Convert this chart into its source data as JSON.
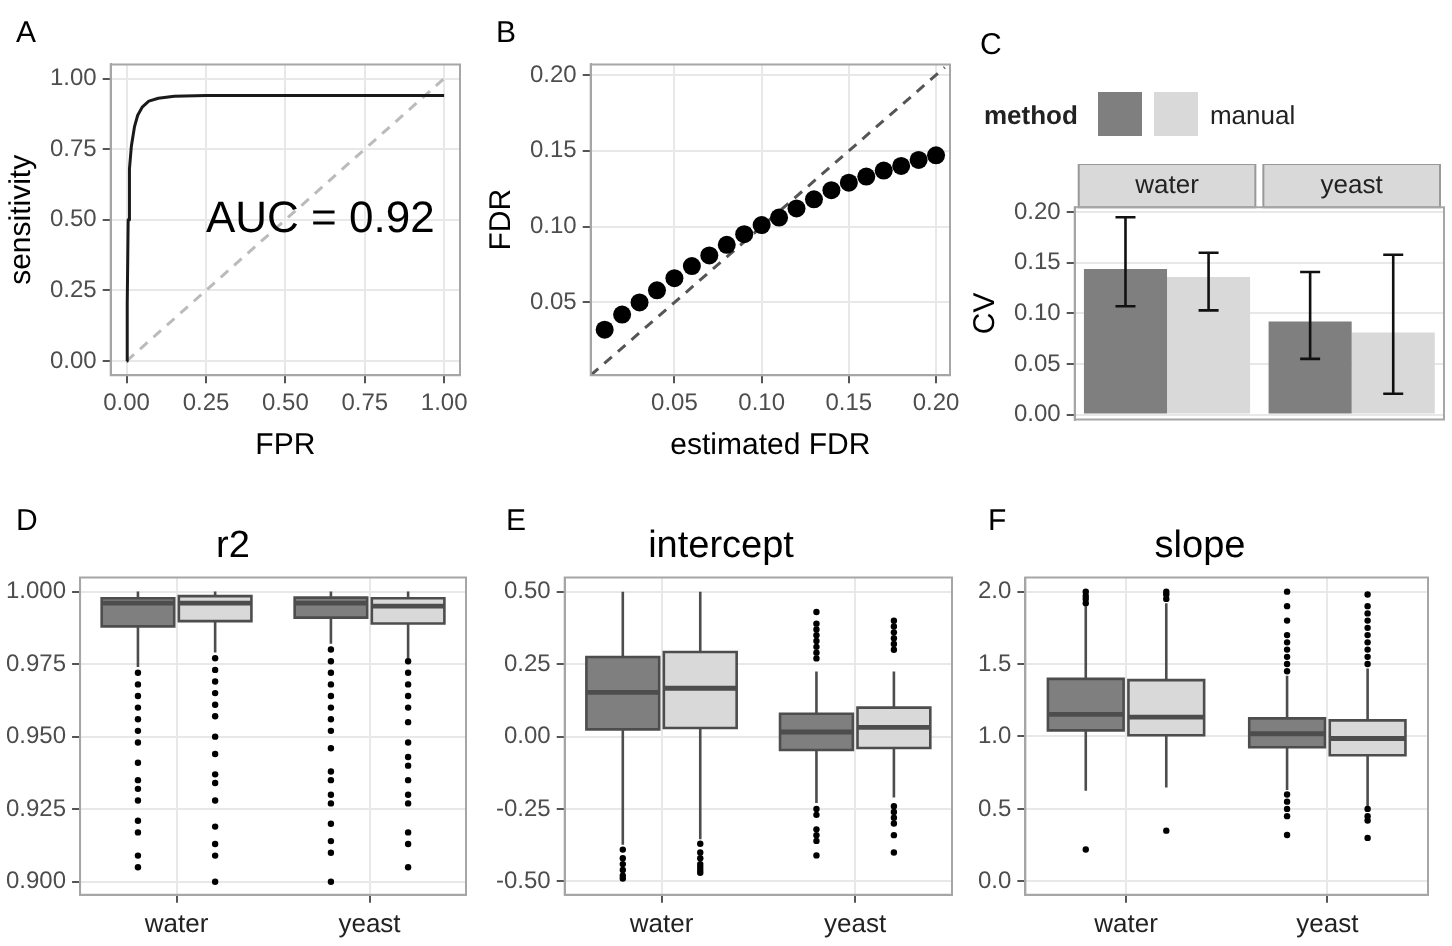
{
  "chart_data": [
    {
      "type": "line",
      "xlabel": "FPR",
      "ylabel": "sensitivity",
      "annotations": [
        "A",
        "AUC = 0.92"
      ],
      "xlim": [
        -0.05,
        1.05
      ],
      "ylim": [
        -0.05,
        1.05
      ],
      "xticks": [
        {
          "value": 0,
          "label": "0.00"
        },
        {
          "value": 0.25,
          "label": "0.25"
        },
        {
          "value": 0.5,
          "label": "0.50"
        },
        {
          "value": 0.75,
          "label": "0.75"
        },
        {
          "value": 1,
          "label": "1.00"
        }
      ],
      "yticks": [
        {
          "value": 0,
          "label": "0.00"
        },
        {
          "value": 0.25,
          "label": "0.25"
        },
        {
          "value": 0.5,
          "label": "0.50"
        },
        {
          "value": 0.75,
          "label": "0.75"
        },
        {
          "value": 1,
          "label": "1.00"
        }
      ],
      "grid": true,
      "marker": "none",
      "series": [
        {
          "color": "#bbbbbb",
          "line_style": "dashed",
          "x": [
            0,
            1
          ],
          "values": [
            0,
            1
          ]
        },
        {
          "color": "#1a1a1a",
          "line_style": "solid",
          "x": [
            0,
            0.002,
            0.005,
            0.009,
            0.015,
            0.025,
            0.035,
            0.05,
            0.07,
            0.1,
            0.15,
            0.25,
            0.5,
            1
          ],
          "values": [
            0,
            0.2,
            0.5,
            0.68,
            0.76,
            0.83,
            0.87,
            0.9,
            0.92,
            0.93,
            0.937,
            0.94,
            0.94,
            0.94
          ]
        }
      ]
    },
    {
      "type": "scatter",
      "xlabel": "estimated FDR",
      "ylabel": "FDR",
      "annotations": [
        "B"
      ],
      "xlim": [
        0.002,
        0.208
      ],
      "ylim": [
        0.002,
        0.207
      ],
      "xticks": [
        {
          "value": 0.05,
          "label": "0.05"
        },
        {
          "value": 0.1,
          "label": "0.10"
        },
        {
          "value": 0.15,
          "label": "0.15"
        },
        {
          "value": 0.2,
          "label": "0.20"
        }
      ],
      "yticks": [
        {
          "value": 0.05,
          "label": "0.05"
        },
        {
          "value": 0.1,
          "label": "0.10"
        },
        {
          "value": 0.15,
          "label": "0.15"
        },
        {
          "value": 0.2,
          "label": "0.20"
        }
      ],
      "grid": true,
      "series": [
        {
          "type": "line",
          "color": "#555555",
          "line_style": "dashed",
          "marker": "none",
          "x": [
            0.002,
            0.205
          ],
          "values": [
            0.002,
            0.205
          ]
        },
        {
          "color": "#000000",
          "marker": "circle",
          "x": [
            0.01,
            0.02,
            0.03,
            0.04,
            0.05,
            0.06,
            0.07,
            0.08,
            0.09,
            0.1,
            0.11,
            0.12,
            0.13,
            0.14,
            0.15,
            0.16,
            0.17,
            0.18,
            0.19,
            0.2
          ],
          "values": [
            0.032,
            0.042,
            0.05,
            0.058,
            0.066,
            0.074,
            0.081,
            0.088,
            0.095,
            0.101,
            0.106,
            0.112,
            0.118,
            0.124,
            0.129,
            0.133,
            0.137,
            0.14,
            0.144,
            0.147
          ]
        }
      ]
    },
    {
      "type": "bar",
      "ylabel": "CV",
      "annotations": [
        "C"
      ],
      "legend_title": "method",
      "legend": "top",
      "categories": [
        "water",
        "yeast"
      ],
      "ylim": [
        -0.005,
        0.205
      ],
      "yticks": [
        {
          "value": 0,
          "label": "0.00"
        },
        {
          "value": 0.05,
          "label": "0.05"
        },
        {
          "value": 0.1,
          "label": "0.10"
        },
        {
          "value": 0.15,
          "label": "0.15"
        },
        {
          "value": 0.2,
          "label": "0.20"
        }
      ],
      "grid": true,
      "series": [
        {
          "color": "#7f7f7f",
          "values": [
            0.144,
            0.092
          ],
          "errors": [
            [
              0.107,
              0.195
            ],
            [
              0.055,
              0.141
            ]
          ]
        },
        {
          "name": "manual",
          "color": "#d9d9d9",
          "values": [
            0.136,
            0.081
          ],
          "errors": [
            [
              0.103,
              0.16
            ],
            [
              0.0205,
              0.158
            ]
          ]
        }
      ]
    },
    {
      "type": "box",
      "title": "r2",
      "annotations": [
        "D"
      ],
      "categories": [
        "water",
        "yeast"
      ],
      "ylim": [
        0.8955,
        1.0048
      ],
      "yticks": [
        {
          "value": 0.9,
          "label": "0.900"
        },
        {
          "value": 0.925,
          "label": "0.925"
        },
        {
          "value": 0.95,
          "label": "0.950"
        },
        {
          "value": 0.975,
          "label": "0.975"
        },
        {
          "value": 1,
          "label": "1.000"
        }
      ],
      "grid": true,
      "series": [
        {
          "color": "#7f7f7f",
          "boxes": [
            {
              "low": 0.974,
              "q1": 0.988,
              "median": 0.996,
              "q3": 0.9977,
              "high": 1.0,
              "outliers": [
                0.972,
                0.968,
                0.964,
                0.96,
                0.956,
                0.952,
                0.948,
                0.941,
                0.935,
                0.932,
                0.928,
                0.921,
                0.917,
                0.909,
                0.905
              ]
            },
            {
              "low": 0.982,
              "q1": 0.991,
              "median": 0.996,
              "q3": 0.9979,
              "high": 1.0,
              "outliers": [
                0.98,
                0.976,
                0.972,
                0.968,
                0.964,
                0.96,
                0.956,
                0.952,
                0.946,
                0.938,
                0.935,
                0.93,
                0.927,
                0.92,
                0.914,
                0.91,
                0.9
              ]
            }
          ]
        },
        {
          "color": "#d9d9d9",
          "boxes": [
            {
              "low": 0.979,
              "q1": 0.9898,
              "median": 0.996,
              "q3": 0.9984,
              "high": 1.0,
              "outliers": [
                0.977,
                0.973,
                0.969,
                0.965,
                0.961,
                0.957,
                0.95,
                0.944,
                0.937,
                0.934,
                0.928,
                0.919,
                0.913,
                0.909,
                0.9
              ]
            },
            {
              "low": 0.977,
              "q1": 0.989,
              "median": 0.995,
              "q3": 0.9977,
              "high": 1.0,
              "outliers": [
                0.976,
                0.972,
                0.968,
                0.964,
                0.96,
                0.955,
                0.948,
                0.943,
                0.94,
                0.935,
                0.93,
                0.927,
                0.917,
                0.913,
                0.905
              ]
            }
          ]
        }
      ]
    },
    {
      "type": "box",
      "title": "intercept",
      "annotations": [
        "E"
      ],
      "categories": [
        "water",
        "yeast"
      ],
      "ylim": [
        -0.546,
        0.549
      ],
      "yticks": [
        {
          "value": -0.5,
          "label": "-0.50"
        },
        {
          "value": -0.25,
          "label": "-0.25"
        },
        {
          "value": 0,
          "label": "0.00"
        },
        {
          "value": 0.25,
          "label": "0.25"
        },
        {
          "value": 0.5,
          "label": "0.50"
        }
      ],
      "grid": true,
      "series": [
        {
          "color": "#7f7f7f",
          "boxes": [
            {
              "low": -0.373,
              "q1": 0.025,
              "median": 0.153,
              "q3": 0.275,
              "high": 0.5,
              "outliers": [
                -0.39,
                -0.42,
                -0.44,
                -0.46,
                -0.48,
                -0.49
              ]
            },
            {
              "low": -0.229,
              "q1": -0.046,
              "median": 0.016,
              "q3": 0.079,
              "high": 0.225,
              "outliers": [
                -0.25,
                -0.27,
                -0.32,
                -0.34,
                -0.36,
                -0.41,
                0.27,
                0.29,
                0.31,
                0.33,
                0.35,
                0.37,
                0.39,
                0.43
              ]
            }
          ]
        },
        {
          "color": "#d9d9d9",
          "boxes": [
            {
              "low": -0.354,
              "q1": 0.03,
              "median": 0.167,
              "q3": 0.292,
              "high": 0.5,
              "outliers": [
                -0.37,
                -0.4,
                -0.42,
                -0.44,
                -0.45,
                -0.46,
                -0.47
              ]
            },
            {
              "low": -0.21,
              "q1": -0.039,
              "median": 0.032,
              "q3": 0.1,
              "high": 0.225,
              "outliers": [
                -0.24,
                -0.26,
                -0.28,
                -0.3,
                -0.34,
                -0.4,
                0.3,
                0.32,
                0.34,
                0.36,
                0.38,
                0.4
              ]
            }
          ]
        }
      ]
    },
    {
      "type": "box",
      "title": "slope",
      "annotations": [
        "F"
      ],
      "categories": [
        "water",
        "yeast"
      ],
      "ylim": [
        -0.093,
        2.097
      ],
      "yticks": [
        {
          "value": 0,
          "label": "0.0"
        },
        {
          "value": 0.5,
          "label": "0.5"
        },
        {
          "value": 1,
          "label": "1.0"
        },
        {
          "value": 1.5,
          "label": "1.5"
        },
        {
          "value": 2,
          "label": "2.0"
        }
      ],
      "grid": true,
      "series": [
        {
          "color": "#7f7f7f",
          "boxes": [
            {
              "low": 0.625,
              "q1": 1.042,
              "median": 1.153,
              "q3": 1.398,
              "high": 1.9,
              "outliers": [
                0.22,
                1.92,
                1.95,
                1.97,
                2.0
              ]
            },
            {
              "low": 0.63,
              "q1": 0.926,
              "median": 1.019,
              "q3": 1.125,
              "high": 1.42,
              "outliers": [
                0.6,
                0.55,
                0.5,
                0.45,
                0.32,
                1.45,
                1.5,
                1.55,
                1.6,
                1.65,
                1.7,
                1.8,
                1.9,
                2.0
              ]
            }
          ]
        },
        {
          "color": "#d9d9d9",
          "boxes": [
            {
              "low": 0.648,
              "q1": 1.009,
              "median": 1.134,
              "q3": 1.389,
              "high": 1.92,
              "outliers": [
                0.35,
                1.95,
                1.98,
                2.0
              ]
            },
            {
              "low": 0.52,
              "q1": 0.87,
              "median": 0.986,
              "q3": 1.111,
              "high": 1.47,
              "outliers": [
                0.5,
                0.45,
                0.42,
                0.3,
                1.5,
                1.55,
                1.6,
                1.65,
                1.7,
                1.75,
                1.8,
                1.85,
                1.9,
                1.98
              ]
            }
          ]
        }
      ]
    }
  ]
}
